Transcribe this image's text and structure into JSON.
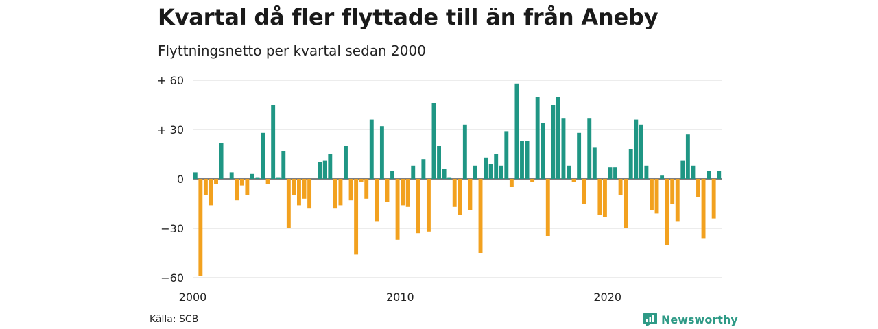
{
  "title": "Kvartal då fler flyttade till än från Aneby",
  "subtitle": "Flyttningsnetto per kvartal sedan 2000",
  "source": "Källa: SCB",
  "brand": "Newsworthy",
  "colors": {
    "positive": "#1f9684",
    "negative": "#f2a11f",
    "grid": "#d9d9d9",
    "brand": "#2e9a86"
  },
  "chart_data": {
    "type": "bar",
    "ylim": [
      -63,
      63
    ],
    "yticks": [
      {
        "value": 60,
        "label": "+ 60"
      },
      {
        "value": 30,
        "label": "+ 30"
      },
      {
        "value": 0,
        "label": "0"
      },
      {
        "value": -30,
        "label": "−30"
      },
      {
        "value": -60,
        "label": "−60"
      }
    ],
    "xticks": [
      {
        "index": 0,
        "label": "2000"
      },
      {
        "index": 40,
        "label": "2010"
      },
      {
        "index": 80,
        "label": "2020"
      }
    ],
    "start_quarter": "2000 Q1",
    "values": [
      4,
      -59,
      -10,
      -16,
      -3,
      22,
      0,
      4,
      -13,
      -4,
      -10,
      3,
      1,
      28,
      -3,
      45,
      1,
      17,
      -30,
      -10,
      -16,
      -12,
      -18,
      0,
      10,
      11,
      15,
      -18,
      -16,
      20,
      -13,
      -46,
      -2,
      -12,
      36,
      -26,
      32,
      -14,
      5,
      -37,
      -16,
      -17,
      8,
      -33,
      12,
      -32,
      46,
      20,
      6,
      1,
      -17,
      -22,
      33,
      -19,
      8,
      -45,
      13,
      9,
      15,
      8,
      29,
      -5,
      58,
      23,
      23,
      -2,
      50,
      34,
      -35,
      45,
      50,
      37,
      8,
      -2,
      28,
      -15,
      37,
      19,
      -22,
      -23,
      7,
      7,
      -10,
      -30,
      18,
      36,
      33,
      8,
      -19,
      -21,
      2,
      -40,
      -15,
      -26,
      11,
      27,
      8,
      -11,
      -36,
      5,
      -24,
      5
    ]
  }
}
